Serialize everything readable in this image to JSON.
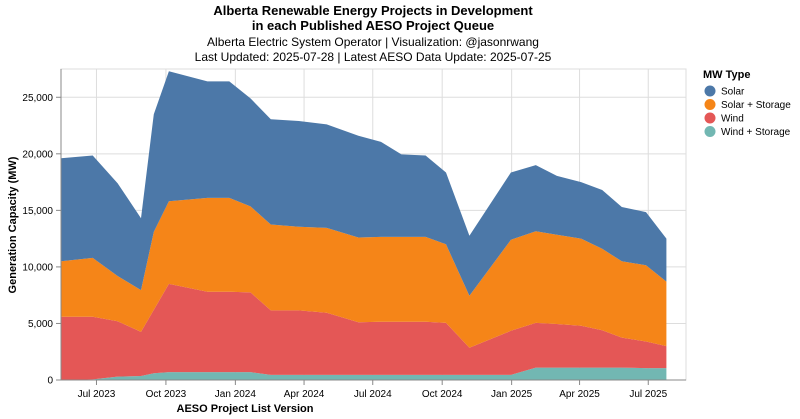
{
  "chart_data": {
    "type": "area",
    "stacked": true,
    "title": [
      "Alberta Renewable Energy Projects in Development",
      "in each Published AESO Project Queue"
    ],
    "subtitle": [
      "Alberta Electric System Operator | Visualization: @jasonrwang",
      "Last Updated: 2025-07-28 | Latest AESO Data Update: 2025-07-25"
    ],
    "xlabel": "AESO Project List Version",
    "ylabel": "Generation Capacity (MW)",
    "xlim": [
      "2023-05-15",
      "2025-08-20"
    ],
    "ylim": [
      0,
      27500
    ],
    "yticks": [
      0,
      5000,
      10000,
      15000,
      20000,
      25000
    ],
    "ytick_labels": [
      "0",
      "5,000",
      "10,000",
      "15,000",
      "20,000",
      "25,000"
    ],
    "xticks": [
      "2023-07-01",
      "2023-10-01",
      "2024-01-01",
      "2024-04-01",
      "2024-07-01",
      "2024-10-01",
      "2025-01-01",
      "2025-04-01",
      "2025-07-01"
    ],
    "xtick_labels": [
      "Jul 2023",
      "Oct 2023",
      "Jan 2024",
      "Apr 2024",
      "Jul 2024",
      "Oct 2024",
      "Jan 2025",
      "Apr 2025",
      "Jul 2025"
    ],
    "grid": true,
    "legend": {
      "title": "MW Type",
      "position": "right"
    },
    "x": [
      "2023-05-15",
      "2023-06-26",
      "2023-07-29",
      "2023-08-29",
      "2023-09-15",
      "2023-10-05",
      "2023-11-25",
      "2023-12-24",
      "2024-01-21",
      "2024-02-17",
      "2024-03-25",
      "2024-05-01",
      "2024-06-12",
      "2024-07-12",
      "2024-08-08",
      "2024-09-09",
      "2024-10-06",
      "2024-11-06",
      "2024-12-31",
      "2025-02-02",
      "2025-03-02",
      "2025-04-03",
      "2025-05-01",
      "2025-05-27",
      "2025-06-28",
      "2025-07-25"
    ],
    "series": [
      {
        "name": "Wind + Storage",
        "color": "#72b7b2",
        "values": [
          0,
          50,
          300,
          350,
          600,
          700,
          700,
          700,
          700,
          450,
          450,
          450,
          450,
          450,
          450,
          450,
          450,
          450,
          450,
          1100,
          1100,
          1100,
          1100,
          1100,
          1050,
          1050
        ]
      },
      {
        "name": "Wind",
        "color": "#e45756",
        "values": [
          5600,
          5550,
          4900,
          3900,
          5600,
          7800,
          7100,
          7100,
          7050,
          5700,
          5700,
          5500,
          4650,
          4700,
          4700,
          4700,
          4600,
          2400,
          3900,
          3950,
          3850,
          3700,
          3300,
          2650,
          2350,
          1950
        ]
      },
      {
        "name": "Solar + Storage",
        "color": "#f58518",
        "values": [
          4900,
          5200,
          4000,
          3700,
          6900,
          7300,
          8300,
          8300,
          7600,
          7600,
          7400,
          7500,
          7500,
          7500,
          7500,
          7500,
          6950,
          4600,
          8050,
          8100,
          7900,
          7700,
          7200,
          6750,
          6750,
          5700
        ]
      },
      {
        "name": "Solar",
        "color": "#4c78a8",
        "values": [
          9100,
          9050,
          8200,
          6350,
          10400,
          11500,
          10300,
          10300,
          9550,
          9300,
          9350,
          9150,
          9000,
          8400,
          7300,
          7200,
          6350,
          5300,
          5950,
          5850,
          5200,
          5000,
          5200,
          4800,
          4700,
          3800
        ]
      }
    ]
  }
}
